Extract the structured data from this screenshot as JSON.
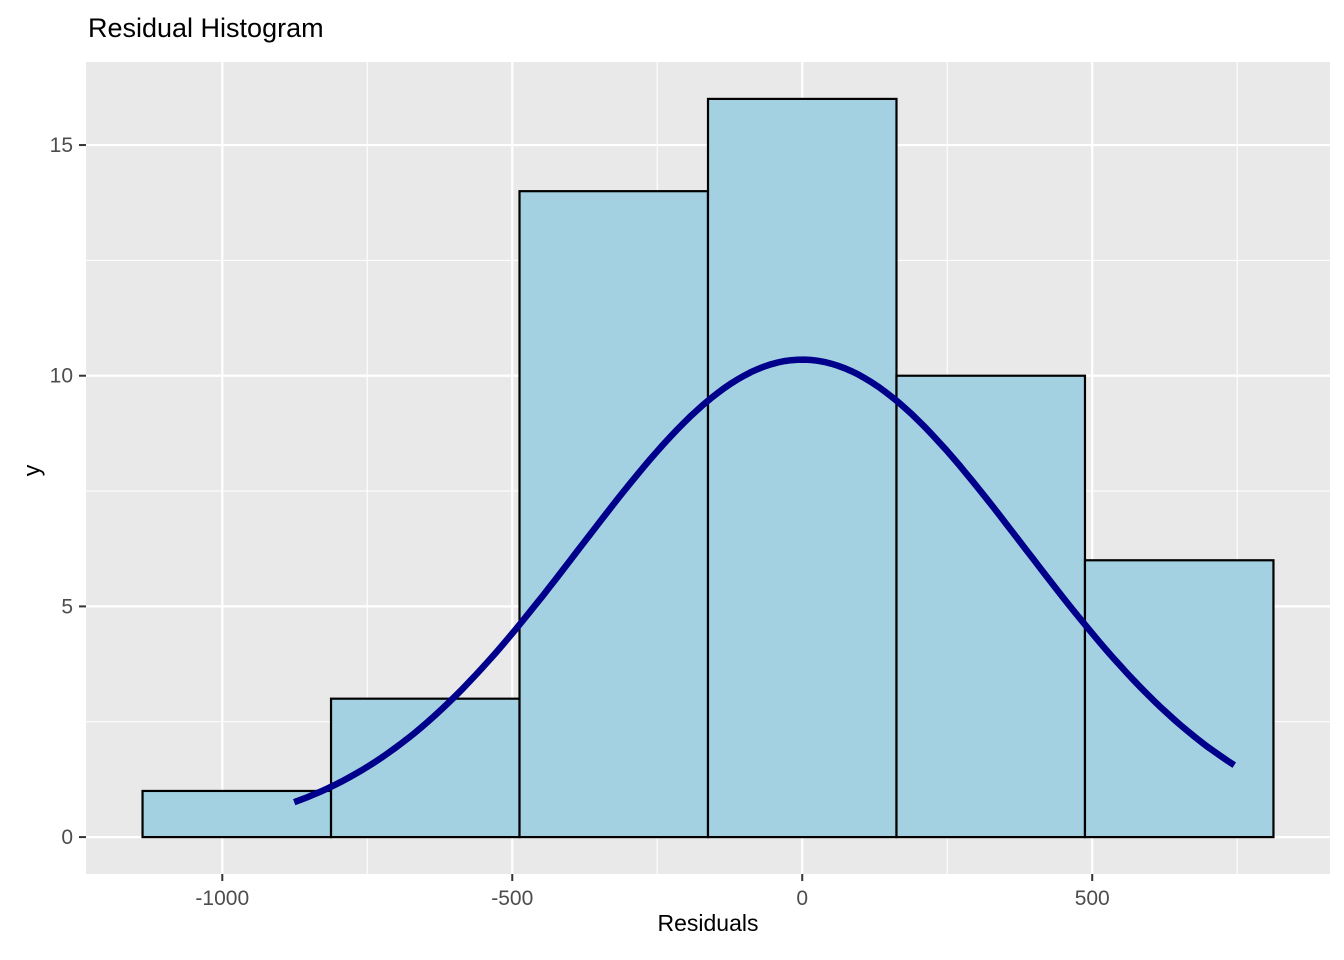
{
  "chart_data": {
    "type": "histogram",
    "title": "Residual Histogram",
    "xlabel": "Residuals",
    "ylabel": "y",
    "bin_edges": [
      -1137.5,
      -812.5,
      -487.5,
      -162.5,
      162.5,
      487.5,
      812.5
    ],
    "counts": [
      1,
      3,
      14,
      16,
      10,
      6
    ],
    "total_n": 50,
    "curve": {
      "shape": "normal-density",
      "mean": 0,
      "sd": 383,
      "peak": 10.35,
      "x_from": -876,
      "x_to": 745
    },
    "x_ticks": [
      -1000,
      -500,
      0,
      500
    ],
    "x_tick_labels": [
      "-1000",
      "-500",
      "0",
      "500"
    ],
    "y_ticks": [
      0,
      5,
      10,
      15
    ],
    "y_tick_labels": [
      "0",
      "5",
      "10",
      "15"
    ],
    "x_domain": [
      -1235,
      910
    ],
    "y_domain": [
      -0.8,
      16.8
    ],
    "grid": {
      "major": true,
      "minor": true
    },
    "legend": "none",
    "colors": {
      "panel_background": "#E9E9E9",
      "gridline_major": "#FFFFFF",
      "gridline_minor": "#FFFFFF",
      "bar_fill": "#A4D1E2",
      "bar_outline": "#000000",
      "curve": "#00008B",
      "axis_text": "#4D4D4D",
      "tick_mark": "#333333",
      "title_text": "#000000"
    }
  }
}
